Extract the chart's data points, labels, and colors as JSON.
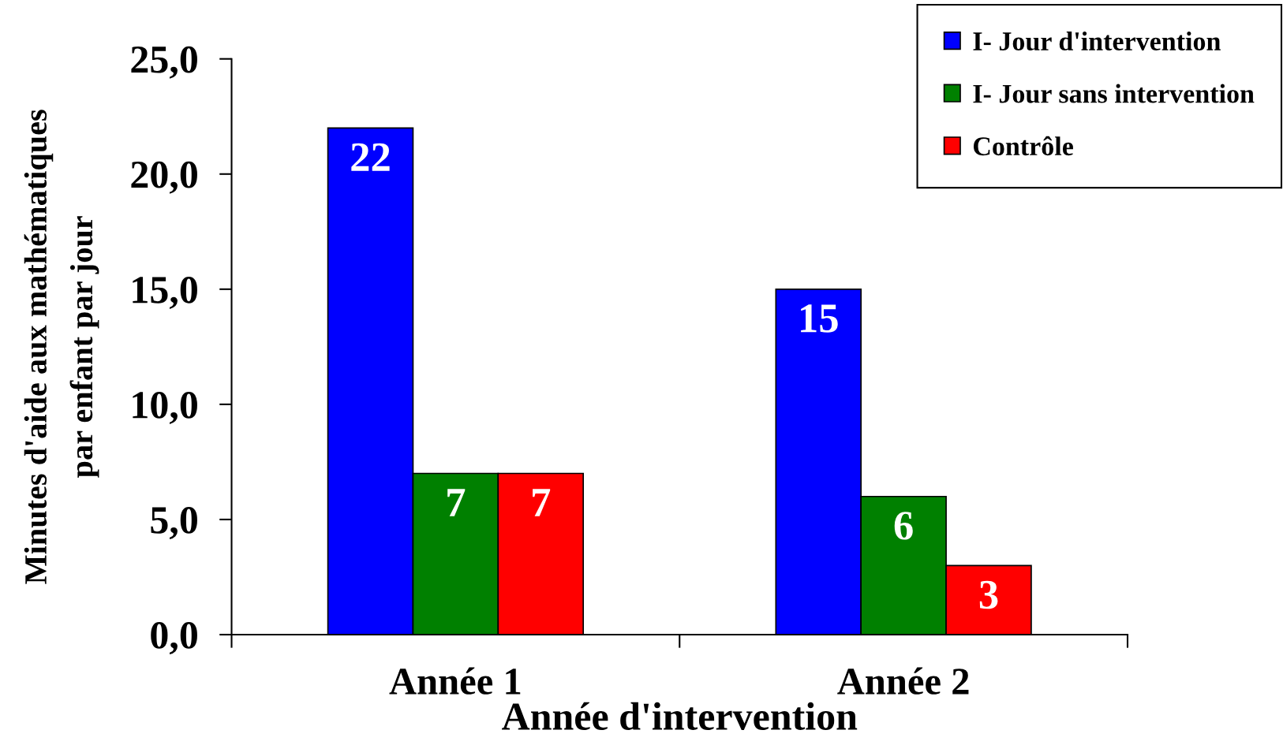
{
  "chart_data": {
    "type": "bar",
    "xlabel": "Année d'intervention",
    "ylabel": "Minutes d'aide aux mathématiques\npar enfant par jour",
    "categories": [
      "Année 1",
      "Année 2"
    ],
    "series": [
      {
        "name": "I- Jour d'intervention",
        "color": "#0000ff",
        "values": [
          22,
          15
        ]
      },
      {
        "name": "I- Jour sans intervention",
        "color": "#008000",
        "values": [
          7,
          6
        ]
      },
      {
        "name": "Contrôle",
        "color": "#ff0000",
        "values": [
          7,
          3
        ]
      }
    ],
    "ylim": [
      0,
      25
    ],
    "yticks": [
      {
        "value": 0,
        "label": "0,0"
      },
      {
        "value": 5,
        "label": "5,0"
      },
      {
        "value": 10,
        "label": "10,0"
      },
      {
        "value": 15,
        "label": "15,0"
      },
      {
        "value": 20,
        "label": "20,0"
      },
      {
        "value": 25,
        "label": "25,0"
      }
    ],
    "data_labels": true,
    "legend": "top right",
    "grid": false
  }
}
